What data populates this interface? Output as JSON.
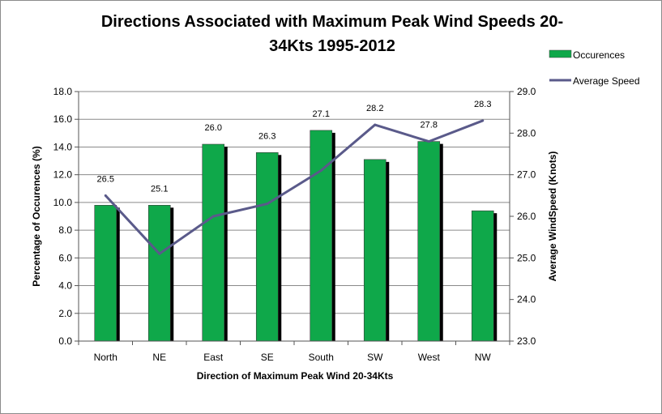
{
  "chart_data": {
    "type": "bar",
    "title_lines": [
      "Directions Associated with Maximum  Peak Wind Speeds 20-",
      "34Kts 1995-2012"
    ],
    "xlabel": "Direction of Maximum Peak Wind 20-34Kts",
    "ylabel": "Percentage of Occurences (%)",
    "y2label": "Average WindSpeed (Knots)",
    "categories": [
      "North",
      "NE",
      "East",
      "SE",
      "South",
      "SW",
      "West",
      "NW"
    ],
    "ylim": [
      0,
      18
    ],
    "yticks": [
      "0.0",
      "2.0",
      "4.0",
      "6.0",
      "8.0",
      "10.0",
      "12.0",
      "14.0",
      "16.0",
      "18.0"
    ],
    "y2lim": [
      23,
      29
    ],
    "y2ticks": [
      "23.0",
      "24.0",
      "25.0",
      "26.0",
      "27.0",
      "28.0",
      "29.0"
    ],
    "legend_position": "right",
    "series": [
      {
        "name": "Occurences",
        "type": "bar",
        "axis": "left",
        "color": "#0fa84a",
        "values": [
          9.8,
          9.8,
          14.2,
          13.6,
          15.2,
          13.1,
          14.4,
          9.4
        ]
      },
      {
        "name": "Average Speed",
        "type": "line",
        "axis": "right",
        "color": "#5a5a8a",
        "values": [
          26.5,
          25.1,
          26.0,
          26.3,
          27.1,
          28.2,
          27.8,
          28.3
        ],
        "data_labels": [
          "26.5",
          "25.1",
          "26.0",
          "26.3",
          "27.1",
          "28.2",
          "27.8",
          "28.3"
        ]
      }
    ]
  }
}
